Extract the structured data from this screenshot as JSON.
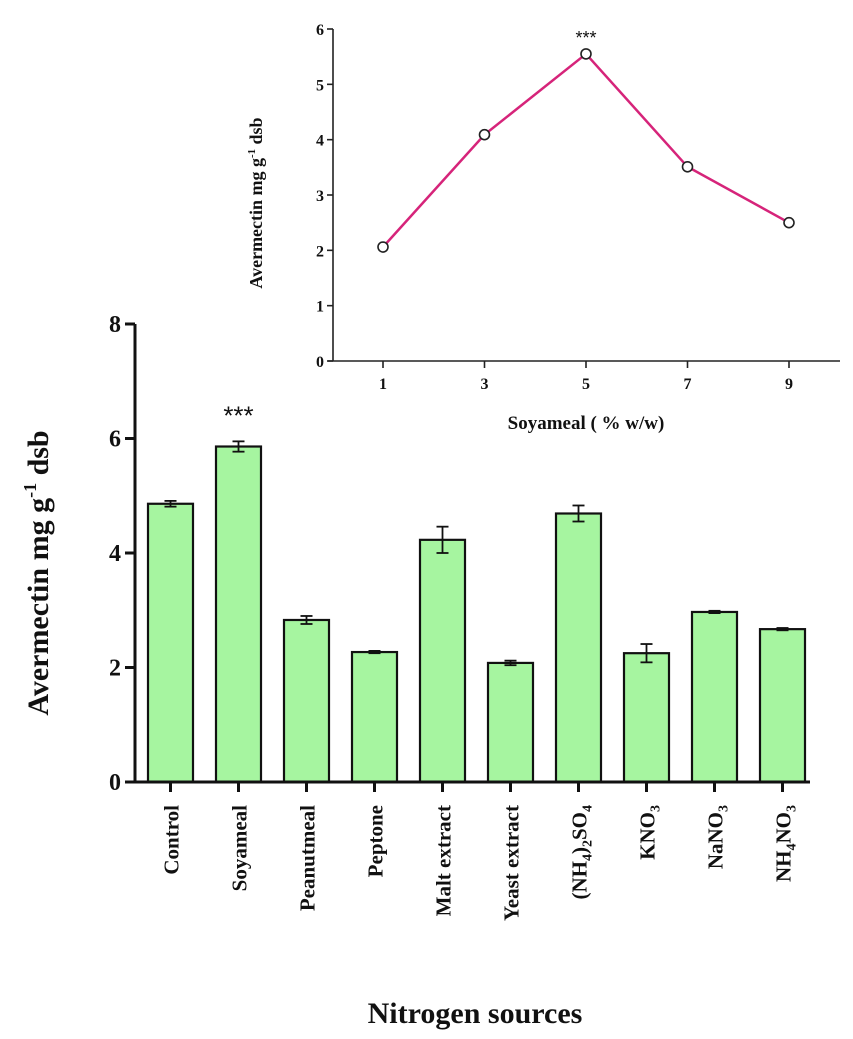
{
  "chart_data": [
    {
      "id": "main",
      "type": "bar",
      "title": "",
      "xlabel": "Nitrogen sources",
      "ylabel": "Avermectin mg g-1 dsb",
      "ylabel_parts": {
        "pre": "Avermectin mg g",
        "sup": "-1",
        "post": " dsb"
      },
      "ylim": [
        0,
        8
      ],
      "yticks": [
        "0",
        "2",
        "4",
        "6",
        "8"
      ],
      "grid": false,
      "bar_color": "#a6f5a0",
      "categories": [
        {
          "label": "Control",
          "parts": [
            {
              "t": "Control"
            }
          ]
        },
        {
          "label": "Soyameal",
          "parts": [
            {
              "t": "Soyameal"
            }
          ]
        },
        {
          "label": "Peanutmeal",
          "parts": [
            {
              "t": "Peanutmeal"
            }
          ]
        },
        {
          "label": "Peptone",
          "parts": [
            {
              "t": "Peptone"
            }
          ]
        },
        {
          "label": "Malt extract",
          "parts": [
            {
              "t": "Malt extract"
            }
          ]
        },
        {
          "label": "Yeast extract",
          "parts": [
            {
              "t": "Yeast extract"
            }
          ]
        },
        {
          "label": "(NH4)2SO4",
          "parts": [
            {
              "t": "(NH"
            },
            {
              "t": "4",
              "sub": true
            },
            {
              "t": ")"
            },
            {
              "t": "2",
              "sub": true
            },
            {
              "t": "SO"
            },
            {
              "t": "4",
              "sub": true
            }
          ]
        },
        {
          "label": "KNO3",
          "parts": [
            {
              "t": "KNO"
            },
            {
              "t": "3",
              "sub": true
            }
          ]
        },
        {
          "label": "NaNO3",
          "parts": [
            {
              "t": "NaNO"
            },
            {
              "t": "3",
              "sub": true
            }
          ]
        },
        {
          "label": "NH4NO3",
          "parts": [
            {
              "t": "NH"
            },
            {
              "t": "4",
              "sub": true
            },
            {
              "t": "NO"
            },
            {
              "t": "3",
              "sub": true
            }
          ]
        }
      ],
      "values": [
        4.86,
        5.86,
        2.83,
        2.27,
        4.23,
        2.08,
        4.69,
        2.25,
        2.97,
        2.67
      ],
      "errors": [
        0.05,
        0.09,
        0.07,
        0.02,
        0.23,
        0.04,
        0.14,
        0.16,
        0.02,
        0.02
      ],
      "annotations": [
        {
          "category": "Soyameal",
          "text": "***"
        }
      ]
    },
    {
      "id": "inset",
      "type": "line",
      "title": "",
      "xlabel": "Soyameal ( % w/w)",
      "ylabel": "Avermectin mg g-1 dsb",
      "ylabel_parts": {
        "pre": "Avermectin mg g",
        "sup": "-1",
        "post": " dsb"
      },
      "ylim": [
        0,
        6
      ],
      "xlim": [
        0,
        10.5
      ],
      "yticks": [
        "0",
        "1",
        "2",
        "3",
        "4",
        "5",
        "6"
      ],
      "xticks": [
        "1",
        "3",
        "5",
        "7",
        "9"
      ],
      "grid": false,
      "line_color": "#d6247a",
      "x": [
        1,
        3,
        5,
        7,
        9
      ],
      "y": [
        2.06,
        4.09,
        5.55,
        3.51,
        2.5
      ],
      "annotations": [
        {
          "x": 5,
          "text": "***"
        }
      ]
    }
  ]
}
